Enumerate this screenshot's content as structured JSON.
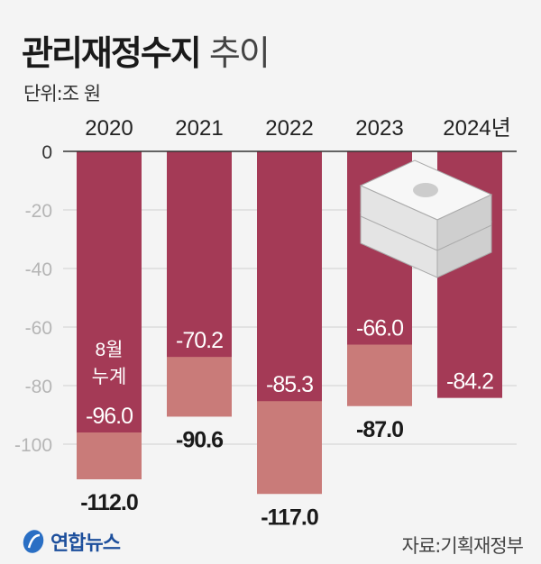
{
  "chart_data": {
    "type": "bar",
    "title_bold": "관리재정수지",
    "title_light": "추이",
    "unit_label": "단위:조 원",
    "categories": [
      "2020",
      "2021",
      "2022",
      "2023",
      "2024년"
    ],
    "series": [
      {
        "values": [
          -112.0,
          -90.6,
          -117.0,
          -87.0,
          null
        ],
        "color": "#c97b79"
      },
      {
        "values": [
          -96.0,
          -70.2,
          -85.3,
          -66.0,
          -84.2
        ],
        "color": "#a43a56"
      }
    ],
    "value_labels_full": [
      "-112.0",
      "-90.6",
      "-117.0",
      "-87.0",
      ""
    ],
    "value_labels_aug": [
      "-96.0",
      "-70.2",
      "-85.3",
      "-66.0",
      "-84.2"
    ],
    "annotation": [
      "8월",
      "누계"
    ],
    "yticks": [
      0,
      -20,
      -40,
      -60,
      -80,
      -100
    ],
    "ytick_labels": [
      "0",
      "-20",
      "-40",
      "-60",
      "-80",
      "-100"
    ],
    "ylim": [
      -120,
      0
    ],
    "grid": true
  },
  "footer": {
    "logo": "연합뉴스",
    "source": "자료:기획재정부"
  }
}
